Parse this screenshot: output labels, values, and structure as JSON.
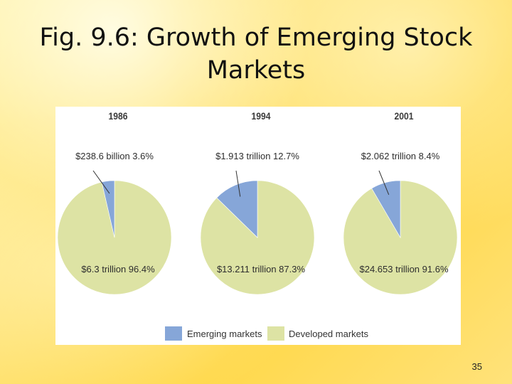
{
  "slide": {
    "title_line1": "Fig. 9.6: Growth of Emerging Stock",
    "title_line2": "Markets",
    "number": "35"
  },
  "chart_data": {
    "type": "pie",
    "title": "Fig. 9.6: Growth of Emerging Stock Markets",
    "series_names": [
      "Emerging markets",
      "Developed markets"
    ],
    "colors": {
      "emerging": "#86a6d8",
      "developed": "#dde3a4"
    },
    "charts": [
      {
        "year": "1986",
        "slices": [
          {
            "name": "Emerging markets",
            "percent": 3.6,
            "label": "$238.6 billion 3.6%"
          },
          {
            "name": "Developed markets",
            "percent": 96.4,
            "label": "$6.3 trillion 96.4%"
          }
        ]
      },
      {
        "year": "1994",
        "slices": [
          {
            "name": "Emerging markets",
            "percent": 12.7,
            "label": "$1.913 trillion 12.7%"
          },
          {
            "name": "Developed markets",
            "percent": 87.3,
            "label": "$13.211 trillion 87.3%"
          }
        ]
      },
      {
        "year": "2001",
        "slices": [
          {
            "name": "Emerging markets",
            "percent": 8.4,
            "label": "$2.062 trillion 8.4%"
          },
          {
            "name": "Developed markets",
            "percent": 91.6,
            "label": "$24.653 trillion 91.6%"
          }
        ]
      }
    ],
    "legend": [
      {
        "label": "Emerging markets",
        "color": "#86a6d8"
      },
      {
        "label": "Developed markets",
        "color": "#dde3a4"
      }
    ],
    "legend_position": "bottom-center"
  }
}
